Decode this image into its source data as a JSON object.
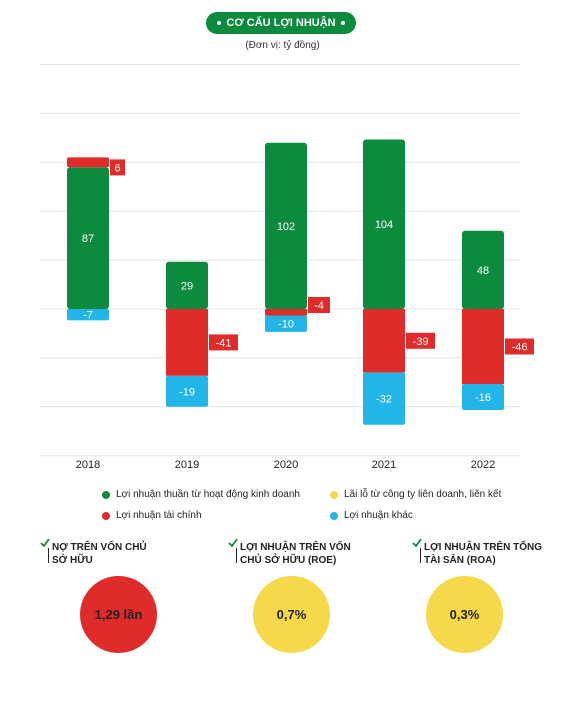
{
  "title": "CƠ CẤU LỢI NHUẬN",
  "unit": "(Đơn vị:  tỷ đồng)",
  "colors": {
    "green": "#0c8a3e",
    "red": "#e02b2b",
    "blue": "#22b5e8",
    "yellow": "#f6d94a"
  },
  "chart_data": {
    "type": "bar",
    "stacked": true,
    "categories": [
      "2018",
      "2019",
      "2020",
      "2021",
      "2022"
    ],
    "series": [
      {
        "name": "Lợi nhuận thuần từ hoạt động kinh doanh",
        "color": "green",
        "values": [
          87,
          29,
          102,
          104,
          48
        ]
      },
      {
        "name": "Lợi nhuận tài chính",
        "color": "red",
        "values": [
          6,
          -41,
          -4,
          -39,
          -46
        ]
      },
      {
        "name": "Lợi nhuận khác",
        "color": "blue",
        "values": [
          -7,
          -19,
          -10,
          -32,
          -16
        ]
      },
      {
        "name": "Lãi lỗ từ công ty liên doanh, liên kết",
        "color": "yellow",
        "values": [
          null,
          null,
          null,
          null,
          null
        ]
      }
    ],
    "ylim": [
      -75,
      125
    ],
    "grid": true,
    "legend_position": "bottom"
  },
  "legend": [
    {
      "label": "Lợi nhuận thuần từ hoạt động kinh doanh",
      "color": "#0c8a3e"
    },
    {
      "label": "Lãi lỗ từ công ty liên doanh, liên kết",
      "color": "#f6d94a"
    },
    {
      "label": "Lợi nhuận tài chính",
      "color": "#e02b2b"
    },
    {
      "label": "Lợi nhuận khác",
      "color": "#22b5e8"
    }
  ],
  "metrics": [
    {
      "label_line1": "NỢ TRÊN VỐN CHỦ",
      "label_line2": "SỞ HỮU",
      "value": "1,29 lần",
      "color": "#e02b2b"
    },
    {
      "label_line1": "LỢI NHUẬN TRÊN VỐN",
      "label_line2": "CHỦ SỞ HỮU (ROE)",
      "value": "0,7%",
      "color": "#f6d94a"
    },
    {
      "label_line1": "LỢI NHUẬN TRÊN TỔNG",
      "label_line2": "TÀI SẢN (ROA)",
      "value": "0,3%",
      "color": "#f6d94a"
    }
  ]
}
